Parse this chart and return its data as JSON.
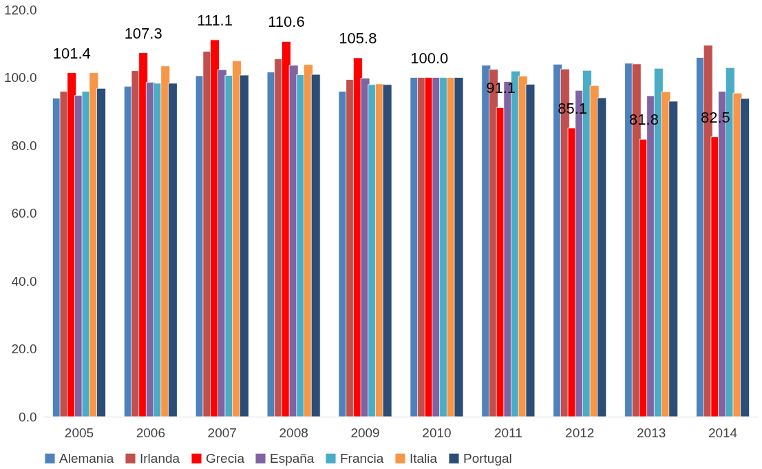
{
  "chart_data": {
    "type": "bar",
    "categories": [
      "2005",
      "2006",
      "2007",
      "2008",
      "2009",
      "2010",
      "2011",
      "2012",
      "2013",
      "2014"
    ],
    "ylim": [
      0,
      120
    ],
    "yticks": [
      {
        "value": 0,
        "label": "0.0"
      },
      {
        "value": 20,
        "label": "20.0"
      },
      {
        "value": 40,
        "label": "40.0"
      },
      {
        "value": 60,
        "label": "60.0"
      },
      {
        "value": 80,
        "label": "80.0"
      },
      {
        "value": 100,
        "label": "100.0"
      },
      {
        "value": 120,
        "label": "120.0"
      }
    ],
    "grid": false,
    "legend": "bottom",
    "series": [
      {
        "name": "Alemania",
        "color": "#4f81bd",
        "values": [
          93.9,
          97.4,
          100.5,
          101.6,
          95.9,
          100,
          103.6,
          103.9,
          104.2,
          105.9
        ]
      },
      {
        "name": "Irlanda",
        "color": "#c0504d",
        "values": [
          95.9,
          102.0,
          107.7,
          105.5,
          99.4,
          100,
          102.4,
          102.5,
          104.0,
          109.5
        ]
      },
      {
        "name": "Grecia",
        "color": "#ff0000",
        "values": [
          101.4,
          107.3,
          111.1,
          110.6,
          105.8,
          100.0,
          91.1,
          85.1,
          81.8,
          82.5
        ],
        "value_labels": [
          "101.4",
          "107.3",
          "111.1",
          "110.6",
          "105.8",
          "100.0",
          "91.1",
          "85.1",
          "81.8",
          "82.5"
        ]
      },
      {
        "name": "España",
        "color": "#8064a2",
        "values": [
          94.7,
          98.6,
          102.3,
          103.6,
          99.8,
          100,
          98.8,
          96.2,
          94.6,
          95.9
        ]
      },
      {
        "name": "Francia",
        "color": "#4bacc6",
        "values": [
          95.9,
          98.3,
          100.6,
          100.8,
          97.9,
          100,
          101.9,
          102.1,
          102.7,
          102.9
        ]
      },
      {
        "name": "Italia",
        "color": "#f79646",
        "values": [
          101.4,
          103.4,
          104.9,
          103.8,
          98.1,
          100,
          100.4,
          97.6,
          95.8,
          95.4
        ]
      },
      {
        "name": "Portugal",
        "color": "#2c4d75",
        "values": [
          96.8,
          98.3,
          100.7,
          100.9,
          97.9,
          100,
          98.0,
          94.0,
          93.0,
          93.8
        ]
      }
    ]
  }
}
